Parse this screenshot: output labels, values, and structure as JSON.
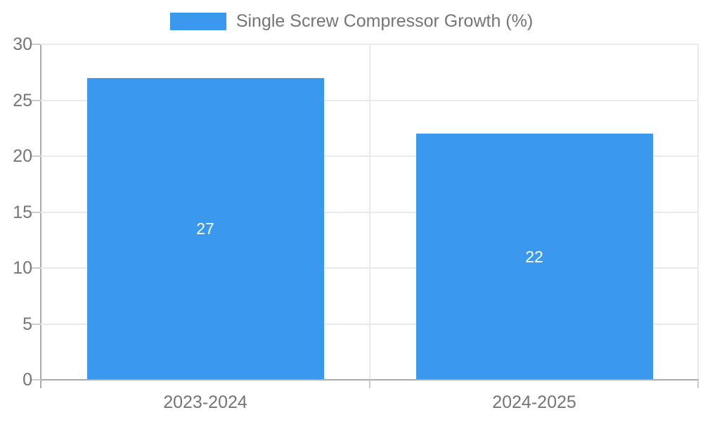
{
  "legend": {
    "label": "Single Screw Compressor Growth (%)"
  },
  "chart_data": {
    "type": "bar",
    "title": "",
    "categories": [
      "2023-2024",
      "2024-2025"
    ],
    "series": [
      {
        "name": "Single Screw Compressor Growth (%)",
        "values": [
          27,
          22
        ]
      }
    ],
    "data_labels": [
      "27",
      "22"
    ],
    "ylim": [
      0,
      30
    ],
    "y_ticks": [
      0,
      5,
      10,
      15,
      20,
      25,
      30
    ],
    "grid": true,
    "legend_position": "top-center",
    "colors": {
      "bar": "#3a99ec",
      "text": "#757575",
      "value_label": "#ffffff",
      "gridline": "#e9e9e9",
      "axis": "#ababab",
      "tick": "#cccccc",
      "background": "#ffffff"
    }
  }
}
